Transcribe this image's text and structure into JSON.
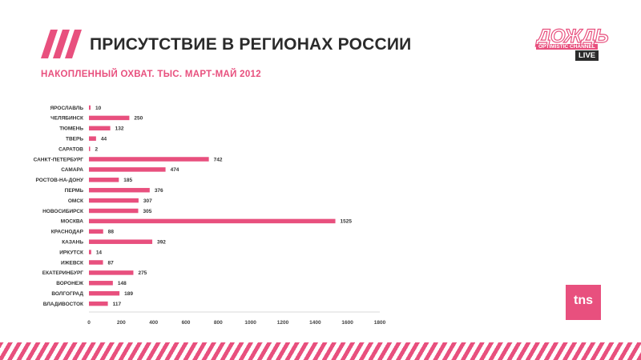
{
  "header": {
    "title": "ПРИСУТСТВИЕ В РЕГИОНАХ РОССИИ",
    "subtitle": "НАКОПЛЕННЫЙ ОХВАТ. ТЫС. МАРТ-МАЙ 2012"
  },
  "logo": {
    "main_text": "ДОЖДЬ",
    "sub_text": "OPTIMISTIC CHANNEL",
    "live_text": "LIVE"
  },
  "tns_logo": {
    "text": "tns"
  },
  "colors": {
    "accent": "#e8507e",
    "title": "#2b2b2b",
    "bar": "#e8507e"
  },
  "chart_data": {
    "type": "bar",
    "orientation": "horizontal",
    "categories": [
      "ЯРОСЛАВЛЬ",
      "ЧЕЛЯБИНСК",
      "ТЮМЕНЬ",
      "ТВЕРЬ",
      "САРАТОВ",
      "САНКТ-ПЕТЕРБУРГ",
      "САМАРА",
      "РОСТОВ-НА-ДОНУ",
      "ПЕРМЬ",
      "ОМСК",
      "НОВОСИБИРСК",
      "МОСКВА",
      "КРАСНОДАР",
      "КАЗАНЬ",
      "ИРКУТСК",
      "ИЖЕВСК",
      "ЕКАТЕРИНБУРГ",
      "ВОРОНЕЖ",
      "ВОЛГОГРАД",
      "ВЛАДИВОСТОК"
    ],
    "values": [
      10,
      250,
      132,
      44,
      2,
      742,
      474,
      185,
      376,
      307,
      305,
      1525,
      88,
      392,
      14,
      87,
      275,
      148,
      189,
      117
    ],
    "xlim": [
      0,
      1800
    ],
    "x_ticks": [
      0,
      200,
      400,
      600,
      800,
      1000,
      1200,
      1400,
      1600,
      1800
    ],
    "grid": false,
    "legend": "none"
  }
}
